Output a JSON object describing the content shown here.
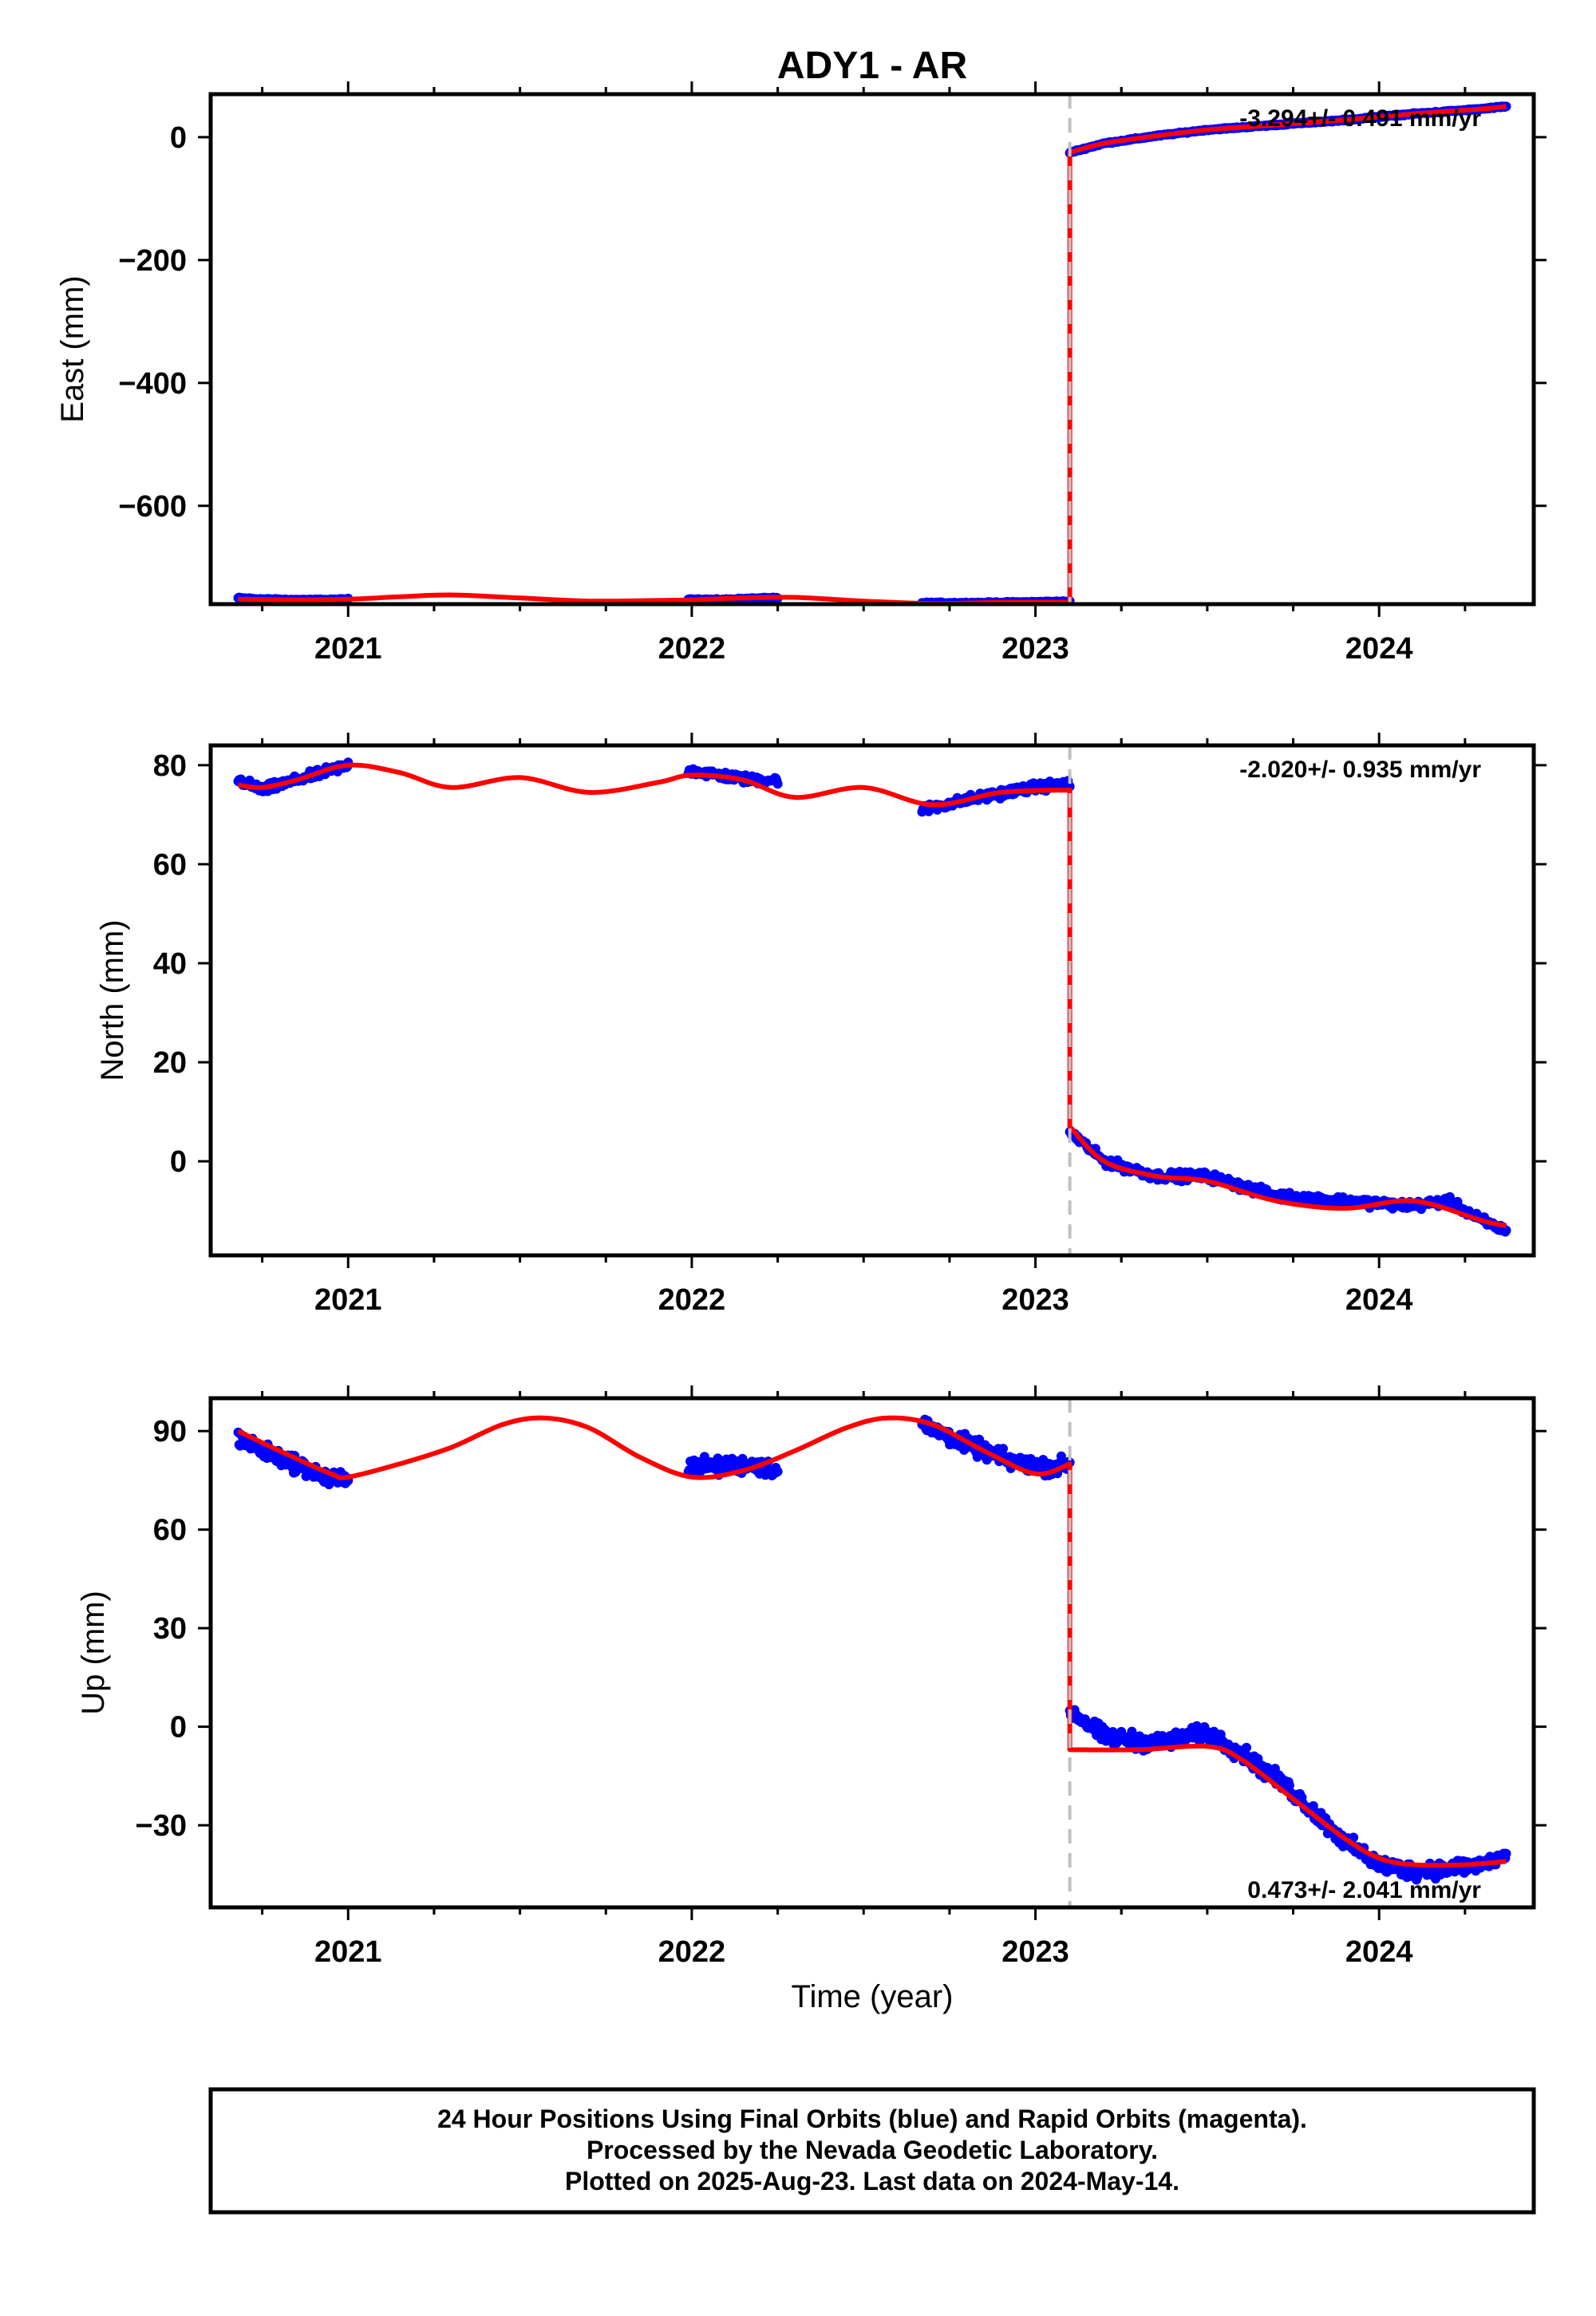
{
  "title": "ADY1 - AR",
  "xlabel": "Time (year)",
  "footer": {
    "line1": "24 Hour Positions Using Final Orbits (blue) and Rapid Orbits (magenta).",
    "line2": "Processed by the Nevada Geodetic Laboratory.",
    "line3": "Plotted on 2025-Aug-23. Last data on 2024-May-14."
  },
  "colors": {
    "data": "#0000ff",
    "model": "#ff0000",
    "break": "#c0c0c0",
    "frame": "#000000"
  },
  "chart_data": [
    {
      "type": "scatter",
      "ylabel": "East (mm)",
      "rate": "-3.294+/- 0.491 mm/yr",
      "rate_position": "top-right",
      "xlim": [
        2020.6,
        2024.45
      ],
      "ylim": [
        -760,
        70
      ],
      "xticks": [
        2021,
        2022,
        2023,
        2024
      ],
      "yticks": [
        0,
        -200,
        -400,
        -600
      ],
      "grid": false,
      "break_year": 2023.1,
      "segments": [
        {
          "x": [
            2020.68,
            2020.75,
            2020.85,
            2020.95,
            2021.0
          ],
          "y": [
            -750,
            -752,
            -753,
            -753,
            -752
          ]
        },
        {
          "x": [
            2021.99,
            2022.08,
            2022.17,
            2022.25
          ],
          "y": [
            -752,
            -753,
            -751,
            -750
          ]
        },
        {
          "x": [
            2022.67,
            2022.8,
            2022.95,
            2023.05,
            2023.1
          ],
          "y": [
            -758,
            -758,
            -757,
            -756,
            -756
          ]
        },
        {
          "x": [
            2023.1,
            2023.2,
            2023.35,
            2023.5,
            2023.7,
            2023.9,
            2024.1,
            2024.3,
            2024.37
          ],
          "y": [
            -25,
            -10,
            2,
            12,
            20,
            28,
            38,
            46,
            50
          ]
        }
      ],
      "model": {
        "x": [
          2020.68,
          2020.85,
          2021.0,
          2021.15,
          2021.3,
          2021.5,
          2021.7,
          2021.9,
          2022.0,
          2022.15,
          2022.3,
          2022.5,
          2022.7,
          2022.9,
          2023.1,
          2023.1,
          2023.2,
          2023.35,
          2023.5,
          2023.7,
          2023.9,
          2024.1,
          2024.3,
          2024.37
        ],
        "y": [
          -752,
          -753,
          -752,
          -748,
          -745,
          -750,
          -755,
          -754,
          -753,
          -750,
          -749,
          -755,
          -759,
          -757,
          -757,
          -25,
          -10,
          2,
          12,
          20,
          28,
          38,
          46,
          50
        ]
      }
    },
    {
      "type": "scatter",
      "ylabel": "North (mm)",
      "rate": "-2.020+/- 0.935 mm/yr",
      "rate_position": "top-right",
      "xlim": [
        2020.6,
        2024.45
      ],
      "ylim": [
        -19,
        84
      ],
      "xticks": [
        2021,
        2022,
        2023,
        2024
      ],
      "yticks": [
        80,
        60,
        40,
        20,
        0
      ],
      "grid": false,
      "break_year": 2023.1,
      "segments": [
        {
          "x": [
            2020.68,
            2020.75,
            2020.85,
            2020.95,
            2021.0
          ],
          "y": [
            77,
            75,
            77,
            79,
            80
          ]
        },
        {
          "x": [
            2021.99,
            2022.08,
            2022.17,
            2022.25
          ],
          "y": [
            79,
            78,
            77,
            77
          ]
        },
        {
          "x": [
            2022.67,
            2022.8,
            2022.95,
            2023.05,
            2023.1
          ],
          "y": [
            71,
            73,
            75,
            76,
            76
          ]
        },
        {
          "x": [
            2023.1,
            2023.2,
            2023.35,
            2023.5,
            2023.7,
            2023.9,
            2024.1,
            2024.2,
            2024.3,
            2024.37
          ],
          "y": [
            6,
            0,
            -3,
            -3,
            -7,
            -8,
            -9,
            -8,
            -12,
            -14
          ]
        }
      ],
      "model": {
        "x": [
          2020.68,
          2020.75,
          2020.85,
          2021.0,
          2021.15,
          2021.3,
          2021.5,
          2021.7,
          2021.9,
          2022.0,
          2022.15,
          2022.3,
          2022.5,
          2022.7,
          2022.9,
          2023.1,
          2023.1,
          2023.2,
          2023.35,
          2023.5,
          2023.7,
          2023.9,
          2024.1,
          2024.3,
          2024.37
        ],
        "y": [
          76,
          75.5,
          77,
          80,
          78.5,
          75.5,
          77.5,
          74.5,
          76.5,
          78,
          77,
          73.5,
          75.5,
          72,
          74.5,
          75,
          7,
          0,
          -3,
          -4,
          -8,
          -9.5,
          -8,
          -12,
          -13
        ]
      }
    },
    {
      "type": "scatter",
      "ylabel": "Up (mm)",
      "rate": "0.473+/- 2.041 mm/yr",
      "rate_position": "bottom-right",
      "xlim": [
        2020.6,
        2024.45
      ],
      "ylim": [
        -55,
        100
      ],
      "xticks": [
        2021,
        2022,
        2023,
        2024
      ],
      "yticks": [
        90,
        60,
        30,
        0,
        -30
      ],
      "grid": false,
      "break_year": 2023.1,
      "segments": [
        {
          "x": [
            2020.68,
            2020.75,
            2020.85,
            2020.95,
            2021.0
          ],
          "y": [
            88,
            84,
            80,
            75,
            76
          ]
        },
        {
          "x": [
            2021.99,
            2022.08,
            2022.17,
            2022.25
          ],
          "y": [
            80,
            79,
            80,
            78
          ]
        },
        {
          "x": [
            2022.67,
            2022.8,
            2022.95,
            2023.05,
            2023.1
          ],
          "y": [
            92,
            86,
            80,
            79,
            80
          ]
        },
        {
          "x": [
            2023.1,
            2023.2,
            2023.35,
            2023.5,
            2023.6,
            2023.75,
            2023.9,
            2024.0,
            2024.1,
            2024.2,
            2024.3,
            2024.37
          ],
          "y": [
            5,
            -3,
            -5,
            -2,
            -8,
            -20,
            -35,
            -42,
            -44,
            -43,
            -42,
            -39
          ]
        }
      ],
      "model": {
        "x": [
          2020.68,
          2020.8,
          2020.95,
          2021.0,
          2021.15,
          2021.3,
          2021.45,
          2021.57,
          2021.7,
          2021.85,
          2022.0,
          2022.15,
          2022.3,
          2022.45,
          2022.57,
          2022.7,
          2022.85,
          2023.0,
          2023.1,
          2023.1,
          2023.3,
          2023.5,
          2023.6,
          2023.75,
          2023.9,
          2024.0,
          2024.1,
          2024.25,
          2024.37
        ],
        "y": [
          90,
          84,
          77,
          76,
          80,
          85,
          92,
          94,
          91,
          82,
          76,
          78,
          84,
          91,
          94,
          92,
          84,
          77,
          80,
          -7,
          -7,
          -6,
          -10,
          -22,
          -34,
          -40,
          -42,
          -42,
          -41
        ]
      }
    }
  ]
}
